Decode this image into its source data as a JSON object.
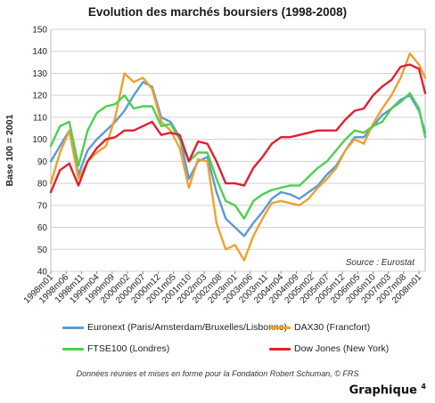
{
  "chart_data": {
    "type": "line",
    "title": "Evolution des marchés boursiers (1998-2008)",
    "ylabel": "Base 100 = 2001",
    "xlabel": "",
    "ylim": [
      40,
      150
    ],
    "yticks": [
      40,
      50,
      60,
      70,
      80,
      90,
      100,
      110,
      120,
      130,
      140,
      150
    ],
    "grid": true,
    "legend_position": "bottom",
    "annotation": "Source : Eurostat",
    "x_tick_labels": [
      "1998m01",
      "1998m06",
      "1998m11",
      "1999m04",
      "1999m09",
      "2000m02",
      "2000m07",
      "2000m12",
      "2001m05",
      "2001m10",
      "2002m03",
      "2002m08",
      "2003m01",
      "2003m06",
      "2003m11",
      "2004m04",
      "2004m09",
      "2005m02",
      "2005m07",
      "2005m12",
      "2006m05",
      "2006m10",
      "2007m03",
      "2007m08",
      "2008m01"
    ],
    "x": [
      "1998m01",
      "1998m04",
      "1998m07",
      "1998m10",
      "1999m01",
      "1999m04",
      "1999m07",
      "1999m10",
      "2000m01",
      "2000m04",
      "2000m07",
      "2000m10",
      "2001m01",
      "2001m04",
      "2001m07",
      "2001m10",
      "2002m01",
      "2002m04",
      "2002m07",
      "2002m10",
      "2003m01",
      "2003m04",
      "2003m07",
      "2003m10",
      "2004m01",
      "2004m04",
      "2004m07",
      "2004m10",
      "2005m01",
      "2005m04",
      "2005m07",
      "2005m10",
      "2006m01",
      "2006m04",
      "2006m07",
      "2006m10",
      "2007m01",
      "2007m04",
      "2007m07",
      "2007m10",
      "2008m01",
      "2008m03"
    ],
    "series": [
      {
        "name": "Euronext (Paris/Amsterdam/Bruxelles/Lisbonne)",
        "color": "#5b9bd5",
        "values": [
          90,
          97,
          104,
          84,
          95,
          100,
          104,
          108,
          113,
          120,
          126,
          124,
          110,
          108,
          101,
          82,
          90,
          92,
          76,
          64,
          60,
          56,
          62,
          67,
          73,
          76,
          75,
          73,
          76,
          79,
          84,
          88,
          95,
          101,
          101,
          106,
          111,
          114,
          118,
          120,
          113,
          103
        ]
      },
      {
        "name": "DAX30 (Francfort)",
        "color": "#f0a030",
        "values": [
          80,
          94,
          104,
          82,
          90,
          94,
          97,
          110,
          130,
          126,
          128,
          123,
          108,
          104,
          96,
          78,
          91,
          90,
          62,
          50,
          52,
          45,
          56,
          64,
          71,
          72,
          71,
          70,
          73,
          78,
          82,
          87,
          95,
          100,
          98,
          107,
          114,
          120,
          128,
          139,
          134,
          128
        ]
      },
      {
        "name": "FTSE100 (Londres)",
        "color": "#4fcf4f",
        "values": [
          97,
          106,
          108,
          88,
          104,
          112,
          115,
          116,
          120,
          114,
          115,
          115,
          106,
          107,
          100,
          90,
          94,
          94,
          82,
          72,
          70,
          64,
          72,
          75,
          77,
          78,
          79,
          79,
          83,
          87,
          90,
          95,
          100,
          104,
          103,
          106,
          108,
          114,
          117,
          121,
          114,
          101
        ]
      },
      {
        "name": "Dow Jones (New York)",
        "color": "#e02030",
        "values": [
          76,
          86,
          89,
          79,
          90,
          96,
          100,
          101,
          104,
          104,
          106,
          108,
          102,
          103,
          102,
          90,
          99,
          98,
          90,
          80,
          80,
          79,
          87,
          92,
          98,
          101,
          101,
          102,
          103,
          104,
          104,
          104,
          109,
          113,
          114,
          120,
          124,
          127,
          133,
          134,
          132,
          121
        ]
      }
    ]
  },
  "footnote": "Données réunies et mises en forme pour la Fondation Robert Schuman, © FRS",
  "graph_label": "Graphique 4",
  "graph_label_sup": "4"
}
